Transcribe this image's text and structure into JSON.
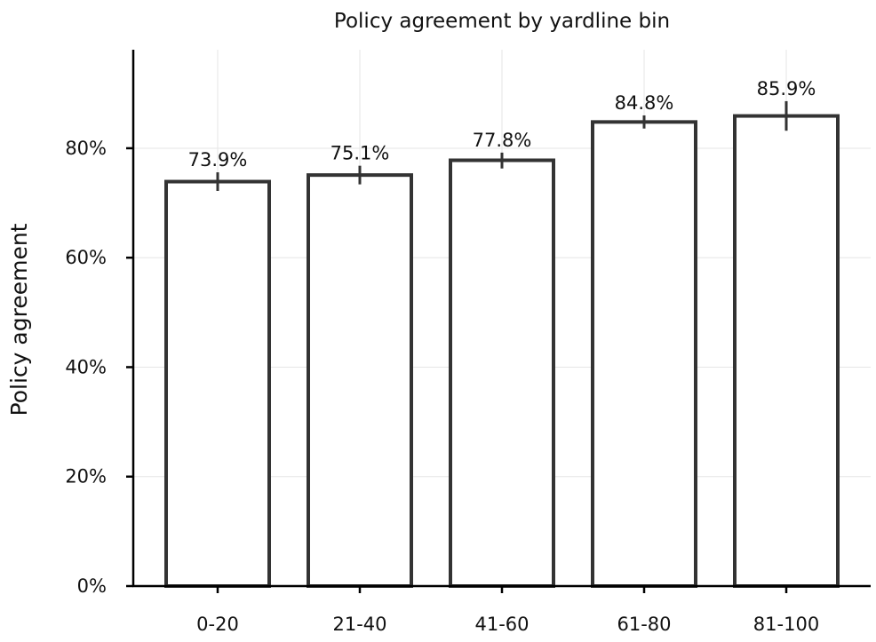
{
  "chart_data": {
    "type": "bar",
    "title": "Policy agreement by yardline bin",
    "xlabel": "",
    "ylabel": "Policy agreement",
    "categories": [
      "0-20",
      "21-40",
      "41-60",
      "61-80",
      "81-100"
    ],
    "values": [
      73.9,
      75.1,
      77.8,
      84.8,
      85.9
    ],
    "value_labels": [
      "73.9%",
      "75.1%",
      "77.8%",
      "84.8%",
      "85.9%"
    ],
    "error_low": [
      72.2,
      73.4,
      76.3,
      83.6,
      83.2
    ],
    "error_high": [
      75.6,
      76.8,
      79.2,
      86.0,
      88.6
    ],
    "ylim": [
      0,
      98
    ],
    "yticks": [
      0,
      20,
      40,
      60,
      80
    ],
    "ytick_labels": [
      "0%",
      "20%",
      "40%",
      "60%",
      "80%"
    ],
    "grid": true,
    "bar_fill": "#ffffff",
    "bar_edge": "#333333"
  }
}
